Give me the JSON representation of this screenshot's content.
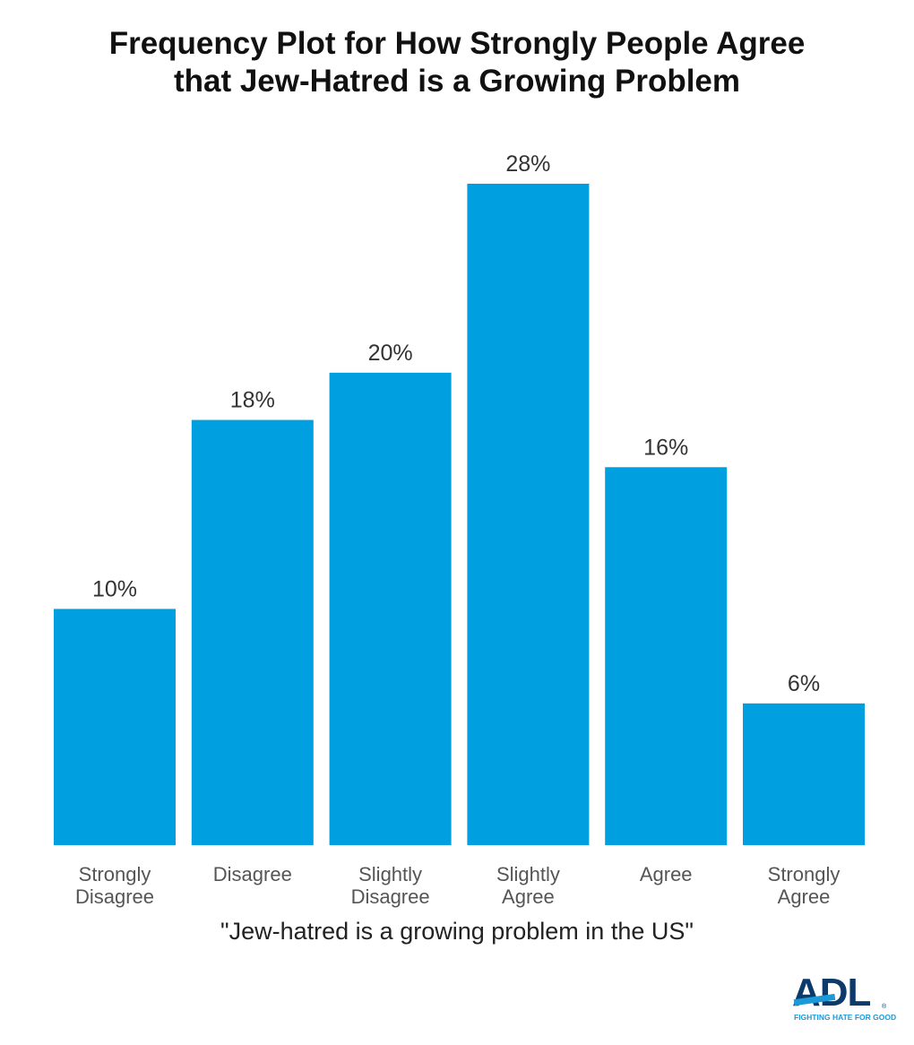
{
  "chart_data": {
    "type": "bar",
    "title": [
      "Frequency Plot for How Strongly People Agree",
      "that Jew-Hatred is a Growing Problem"
    ],
    "xlabel": "\"Jew-hatred is a growing problem in the US\"",
    "ylabel": "",
    "categories": [
      [
        "Strongly",
        "Disagree"
      ],
      [
        "Disagree"
      ],
      [
        "Slightly",
        "Disagree"
      ],
      [
        "Slightly",
        "Agree"
      ],
      [
        "Agree"
      ],
      [
        "Strongly",
        "Agree"
      ]
    ],
    "values": [
      10,
      18,
      20,
      28,
      16,
      6
    ],
    "data_labels": [
      "10%",
      "18%",
      "20%",
      "28%",
      "16%",
      "6%"
    ],
    "ylim": [
      0,
      30
    ],
    "grid": false,
    "bar_color": "#009fdf"
  },
  "logo": {
    "text": "ADL",
    "tagline": "FIGHTING HATE FOR GOOD",
    "reg": "®",
    "primary_color": "#0b3a6b",
    "accent_color": "#1b9ad7"
  }
}
